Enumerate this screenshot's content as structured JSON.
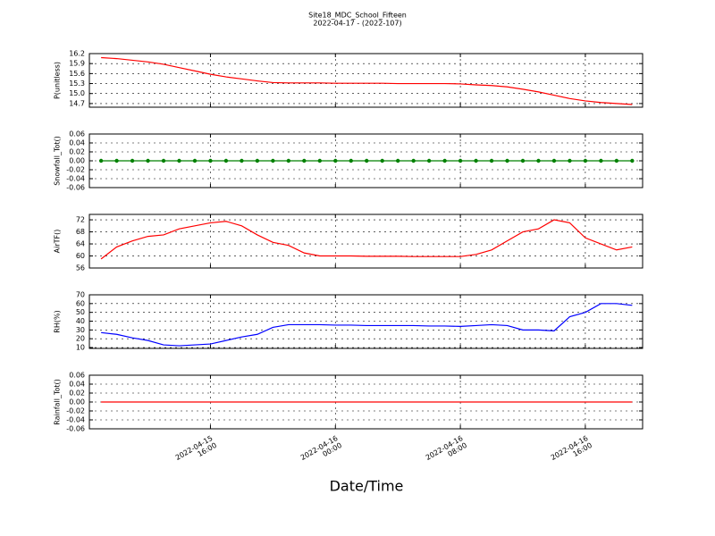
{
  "chart_data": [
    {
      "type": "line",
      "title": "Site18_MDC_School_Fifteen",
      "subtitle": "2022-04-17 - (2022-107)",
      "ylabel": "P(unitless)",
      "color": "#ff0000",
      "grid": true,
      "xlim": [
        "2022-04-15 08:15",
        "2022-04-16 19:40"
      ],
      "xticks": [
        "2022-04-15 16:00",
        "2022-04-16 00:00",
        "2022-04-16 08:00",
        "2022-04-16 16:00"
      ],
      "ylim": [
        14.59,
        16.2
      ],
      "yticks": [
        14.7,
        {
          "value": 15,
          "label": "15.0"
        },
        15.3,
        15.6,
        15.9,
        16.2
      ],
      "x": [
        "2022-04-15 09:00",
        "2022-04-15 10:00",
        "2022-04-15 11:00",
        "2022-04-15 12:00",
        "2022-04-15 13:00",
        "2022-04-15 14:00",
        "2022-04-15 15:00",
        "2022-04-15 16:00",
        "2022-04-15 17:00",
        "2022-04-15 18:00",
        "2022-04-15 19:00",
        "2022-04-15 20:00",
        "2022-04-15 21:00",
        "2022-04-15 22:00",
        "2022-04-15 23:00",
        "2022-04-16 00:00",
        "2022-04-16 01:00",
        "2022-04-16 02:00",
        "2022-04-16 03:00",
        "2022-04-16 04:00",
        "2022-04-16 05:00",
        "2022-04-16 06:00",
        "2022-04-16 07:00",
        "2022-04-16 08:00",
        "2022-04-16 09:00",
        "2022-04-16 10:00",
        "2022-04-16 11:00",
        "2022-04-16 12:00",
        "2022-04-16 13:00",
        "2022-04-16 14:00",
        "2022-04-16 15:00",
        "2022-04-16 16:00",
        "2022-04-16 17:00",
        "2022-04-16 18:00",
        "2022-04-16 19:00"
      ],
      "values": [
        16.08,
        16.05,
        16.0,
        15.95,
        15.88,
        15.78,
        15.68,
        15.58,
        15.5,
        15.44,
        15.38,
        15.33,
        15.32,
        15.32,
        15.32,
        15.31,
        15.31,
        15.31,
        15.31,
        15.3,
        15.3,
        15.3,
        15.3,
        15.29,
        15.26,
        15.24,
        15.2,
        15.13,
        15.05,
        14.95,
        14.85,
        14.78,
        14.73,
        14.7,
        14.67
      ]
    },
    {
      "type": "line",
      "ylabel": "Snowfall_Tot()",
      "color": "#008000",
      "marker": "o",
      "grid": true,
      "xlim": [
        "2022-04-15 08:15",
        "2022-04-16 19:40"
      ],
      "xticks": [
        "2022-04-15 16:00",
        "2022-04-16 00:00",
        "2022-04-16 08:00",
        "2022-04-16 16:00"
      ],
      "ylim": [
        -0.06,
        0.06
      ],
      "yticks": [
        -0.06,
        -0.04,
        -0.02,
        {
          "value": 0,
          "label": "0.00"
        },
        0.02,
        0.04,
        0.06
      ],
      "x": [
        "2022-04-15 09:00",
        "2022-04-15 10:00",
        "2022-04-15 11:00",
        "2022-04-15 12:00",
        "2022-04-15 13:00",
        "2022-04-15 14:00",
        "2022-04-15 15:00",
        "2022-04-15 16:00",
        "2022-04-15 17:00",
        "2022-04-15 18:00",
        "2022-04-15 19:00",
        "2022-04-15 20:00",
        "2022-04-15 21:00",
        "2022-04-15 22:00",
        "2022-04-15 23:00",
        "2022-04-16 00:00",
        "2022-04-16 01:00",
        "2022-04-16 02:00",
        "2022-04-16 03:00",
        "2022-04-16 04:00",
        "2022-04-16 05:00",
        "2022-04-16 06:00",
        "2022-04-16 07:00",
        "2022-04-16 08:00",
        "2022-04-16 09:00",
        "2022-04-16 10:00",
        "2022-04-16 11:00",
        "2022-04-16 12:00",
        "2022-04-16 13:00",
        "2022-04-16 14:00",
        "2022-04-16 15:00",
        "2022-04-16 16:00",
        "2022-04-16 17:00",
        "2022-04-16 18:00",
        "2022-04-16 19:00"
      ],
      "values": [
        0,
        0,
        0,
        0,
        0,
        0,
        0,
        0,
        0,
        0,
        0,
        0,
        0,
        0,
        0,
        0,
        0,
        0,
        0,
        0,
        0,
        0,
        0,
        0,
        0,
        0,
        0,
        0,
        0,
        0,
        0,
        0,
        0,
        0,
        0
      ]
    },
    {
      "type": "line",
      "ylabel": "AirTF()",
      "color": "#ff0000",
      "grid": true,
      "xlim": [
        "2022-04-15 08:15",
        "2022-04-16 19:40"
      ],
      "xticks": [
        "2022-04-15 16:00",
        "2022-04-16 00:00",
        "2022-04-16 08:00",
        "2022-04-16 16:00"
      ],
      "ylim": [
        56,
        73.8
      ],
      "yticks": [
        56,
        60,
        64,
        68,
        72
      ],
      "x": [
        "2022-04-15 09:00",
        "2022-04-15 10:00",
        "2022-04-15 11:00",
        "2022-04-15 12:00",
        "2022-04-15 13:00",
        "2022-04-15 14:00",
        "2022-04-15 15:00",
        "2022-04-15 16:00",
        "2022-04-15 17:00",
        "2022-04-15 18:00",
        "2022-04-15 19:00",
        "2022-04-15 20:00",
        "2022-04-15 21:00",
        "2022-04-15 22:00",
        "2022-04-15 23:00",
        "2022-04-16 00:00",
        "2022-04-16 01:00",
        "2022-04-16 02:00",
        "2022-04-16 03:00",
        "2022-04-16 04:00",
        "2022-04-16 05:00",
        "2022-04-16 06:00",
        "2022-04-16 07:00",
        "2022-04-16 08:00",
        "2022-04-16 09:00",
        "2022-04-16 10:00",
        "2022-04-16 11:00",
        "2022-04-16 12:00",
        "2022-04-16 13:00",
        "2022-04-16 14:00",
        "2022-04-16 15:00",
        "2022-04-16 16:00",
        "2022-04-16 17:00",
        "2022-04-16 18:00",
        "2022-04-16 19:00"
      ],
      "values": [
        59,
        63,
        65,
        66.5,
        67,
        69,
        70,
        71,
        71.5,
        70,
        67,
        64.5,
        63.5,
        61,
        60,
        60,
        60,
        59.9,
        59.9,
        59.9,
        59.8,
        59.8,
        59.8,
        59.8,
        60.5,
        62,
        65,
        68,
        69,
        72,
        71,
        66,
        64,
        62,
        63
      ]
    },
    {
      "type": "line",
      "ylabel": "RH(%)",
      "color": "#0000ff",
      "grid": true,
      "xlim": [
        "2022-04-15 08:15",
        "2022-04-16 19:40"
      ],
      "xticks": [
        "2022-04-15 16:00",
        "2022-04-16 00:00",
        "2022-04-16 08:00",
        "2022-04-16 16:00"
      ],
      "ylim": [
        9,
        70
      ],
      "yticks": [
        10,
        20,
        30,
        40,
        50,
        60,
        70
      ],
      "x": [
        "2022-04-15 09:00",
        "2022-04-15 10:00",
        "2022-04-15 11:00",
        "2022-04-15 12:00",
        "2022-04-15 13:00",
        "2022-04-15 14:00",
        "2022-04-15 15:00",
        "2022-04-15 16:00",
        "2022-04-15 17:00",
        "2022-04-15 18:00",
        "2022-04-15 19:00",
        "2022-04-15 20:00",
        "2022-04-15 21:00",
        "2022-04-15 22:00",
        "2022-04-15 23:00",
        "2022-04-16 00:00",
        "2022-04-16 01:00",
        "2022-04-16 02:00",
        "2022-04-16 03:00",
        "2022-04-16 04:00",
        "2022-04-16 05:00",
        "2022-04-16 06:00",
        "2022-04-16 07:00",
        "2022-04-16 08:00",
        "2022-04-16 09:00",
        "2022-04-16 10:00",
        "2022-04-16 11:00",
        "2022-04-16 12:00",
        "2022-04-16 13:00",
        "2022-04-16 14:00",
        "2022-04-16 15:00",
        "2022-04-16 16:00",
        "2022-04-16 17:00",
        "2022-04-16 18:00",
        "2022-04-16 19:00"
      ],
      "values": [
        27,
        25,
        21,
        18,
        13,
        12,
        13,
        14,
        18,
        22,
        25,
        33,
        36,
        36,
        36,
        35.5,
        35.5,
        35,
        35,
        35,
        35,
        34.5,
        34.5,
        34,
        35,
        36,
        35,
        30,
        30,
        29,
        45,
        50,
        60,
        60,
        58
      ]
    },
    {
      "type": "line",
      "ylabel": "Rainfall_Tot()",
      "xlabel": "Date/Time",
      "color": "#ff0000",
      "grid": true,
      "xlim": [
        "2022-04-15 08:15",
        "2022-04-16 19:40"
      ],
      "xticks": [
        "2022-04-15 16:00",
        "2022-04-16 00:00",
        "2022-04-16 08:00",
        "2022-04-16 16:00"
      ],
      "ylim": [
        -0.06,
        0.06
      ],
      "yticks": [
        -0.06,
        -0.04,
        -0.02,
        {
          "value": 0,
          "label": "0.00"
        },
        0.02,
        0.04,
        0.06
      ],
      "x": [
        "2022-04-15 09:00",
        "2022-04-15 10:00",
        "2022-04-15 11:00",
        "2022-04-15 12:00",
        "2022-04-15 13:00",
        "2022-04-15 14:00",
        "2022-04-15 15:00",
        "2022-04-15 16:00",
        "2022-04-15 17:00",
        "2022-04-15 18:00",
        "2022-04-15 19:00",
        "2022-04-15 20:00",
        "2022-04-15 21:00",
        "2022-04-15 22:00",
        "2022-04-15 23:00",
        "2022-04-16 00:00",
        "2022-04-16 01:00",
        "2022-04-16 02:00",
        "2022-04-16 03:00",
        "2022-04-16 04:00",
        "2022-04-16 05:00",
        "2022-04-16 06:00",
        "2022-04-16 07:00",
        "2022-04-16 08:00",
        "2022-04-16 09:00",
        "2022-04-16 10:00",
        "2022-04-16 11:00",
        "2022-04-16 12:00",
        "2022-04-16 13:00",
        "2022-04-16 14:00",
        "2022-04-16 15:00",
        "2022-04-16 16:00",
        "2022-04-16 17:00",
        "2022-04-16 18:00",
        "2022-04-16 19:00"
      ],
      "values": [
        0,
        0,
        0,
        0,
        0,
        0,
        0,
        0,
        0,
        0,
        0,
        0,
        0,
        0,
        0,
        0,
        0,
        0,
        0,
        0,
        0,
        0,
        0,
        0,
        0,
        0,
        0,
        0,
        0,
        0,
        0,
        0,
        0,
        0,
        0
      ]
    }
  ]
}
